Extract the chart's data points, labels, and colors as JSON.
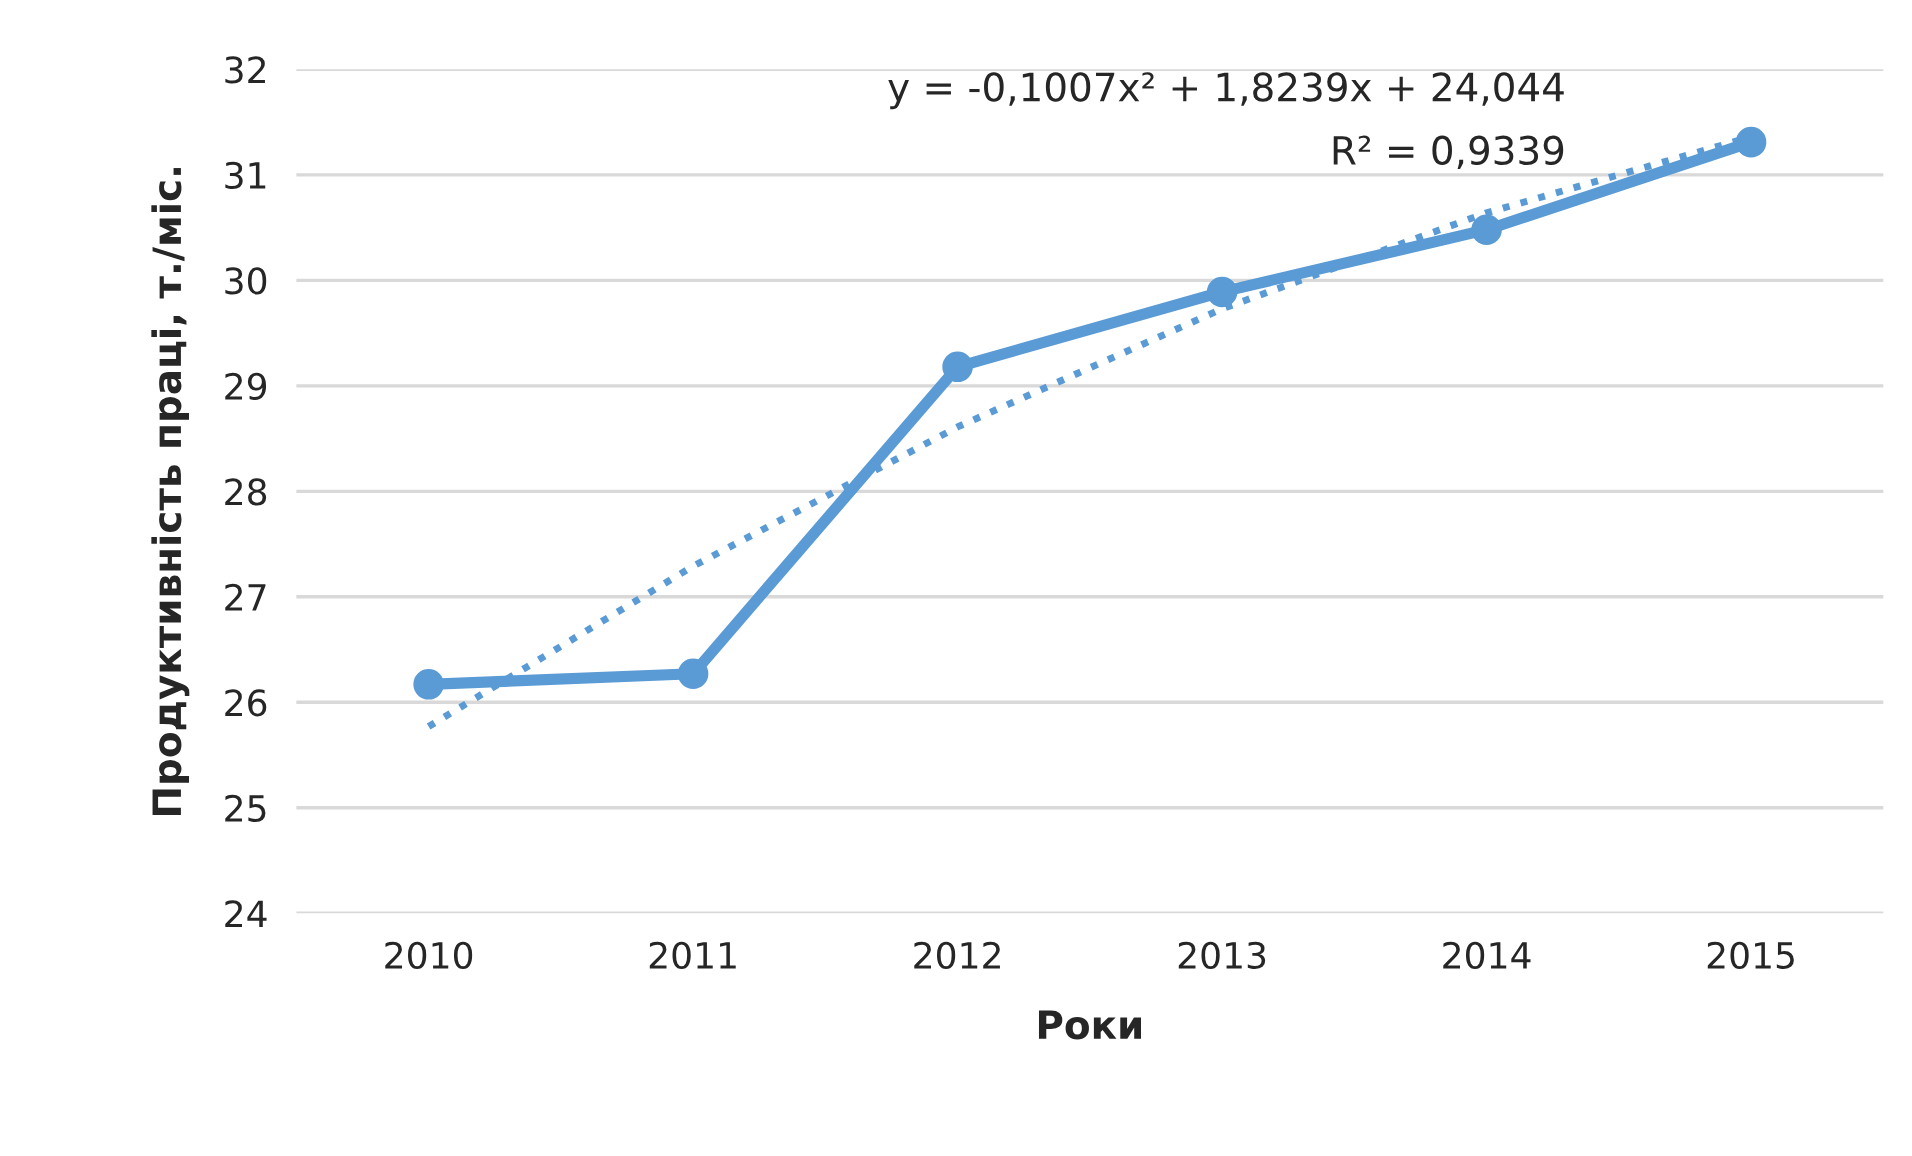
{
  "chart_data": {
    "type": "line",
    "xlabel": "Роки",
    "ylabel": "Продуктивність праці, т./міс.",
    "categories": [
      "2010",
      "2011",
      "2012",
      "2013",
      "2014",
      "2015"
    ],
    "series": [
      {
        "color": "#5b9bd5",
        "values": [
          26.17,
          26.27,
          29.18,
          29.89,
          30.48,
          31.31
        ],
        "marker": "circle",
        "line_style": "solid"
      },
      {
        "type": "line",
        "color": "#5b9bd5",
        "values": [
          25.77,
          27.29,
          28.61,
          29.73,
          30.64,
          31.36
        ],
        "marker": "none",
        "line_style": "dotted"
      }
    ],
    "annotations": [
      "y = -0,1007x² + 1,8239x + 24,044",
      "R² = 0,9339"
    ],
    "ylim": [
      24,
      32
    ],
    "yticks": [
      24,
      25,
      26,
      27,
      28,
      29,
      30,
      31,
      32
    ],
    "grid": "y",
    "legend": false
  }
}
